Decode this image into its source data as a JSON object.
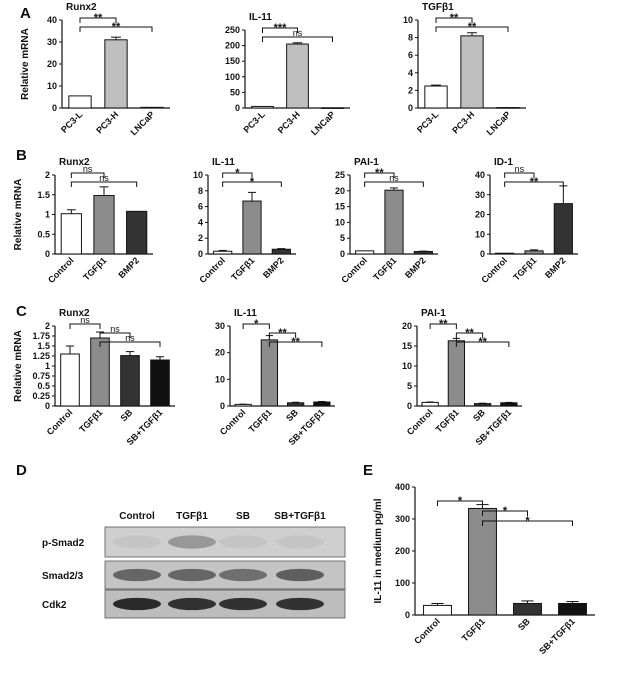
{
  "palette": {
    "white": "#ffffff",
    "lightgray": "#bfbfbf",
    "gray": "#8c8c8c",
    "dark": "#333333",
    "black": "#111111"
  },
  "chart_data": [
    {
      "id": "A1",
      "panel_letter": "A",
      "type": "bar",
      "title": "Runx2",
      "ylabel": "Relative mRNA",
      "ylim": [
        0,
        40
      ],
      "yticks": [
        0,
        10,
        20,
        30,
        40
      ],
      "categories": [
        "PC3-L",
        "PC3-H",
        "LNCaP"
      ],
      "values": [
        5.5,
        31,
        0.3
      ],
      "errors": [
        0,
        1.2,
        0
      ],
      "colors": [
        "white",
        "lightgray",
        "white"
      ],
      "sig": [
        {
          "from": 0,
          "to": 1,
          "label": "**"
        },
        {
          "from": 0,
          "to": 2,
          "label": "**"
        }
      ]
    },
    {
      "id": "A2",
      "type": "bar",
      "title": "IL-11",
      "ylim": [
        0,
        250
      ],
      "yticks": [
        0,
        50,
        100,
        150,
        200,
        250
      ],
      "categories": [
        "PC3-L",
        "PC3-H",
        "LNCaP"
      ],
      "values": [
        5,
        205,
        0.5
      ],
      "errors": [
        0,
        4,
        0
      ],
      "colors": [
        "white",
        "lightgray",
        "white"
      ],
      "sig": [
        {
          "from": 0,
          "to": 1,
          "label": "***"
        },
        {
          "from": 0,
          "to": 2,
          "label": "ns"
        }
      ]
    },
    {
      "id": "A3",
      "type": "bar",
      "title": "TGFβ1",
      "ylim": [
        0,
        10
      ],
      "yticks": [
        0,
        2,
        4,
        6,
        8,
        10
      ],
      "categories": [
        "PC3-L",
        "PC3-H",
        "LNCaP"
      ],
      "values": [
        2.5,
        8.2,
        0.05
      ],
      "errors": [
        0.1,
        0.35,
        0
      ],
      "colors": [
        "white",
        "lightgray",
        "white"
      ],
      "sig": [
        {
          "from": 0,
          "to": 1,
          "label": "**"
        },
        {
          "from": 0,
          "to": 2,
          "label": "**"
        }
      ]
    },
    {
      "id": "B1",
      "panel_letter": "B",
      "type": "bar",
      "title": "Runx2",
      "ylabel": "Relative mRNA",
      "ylim": [
        0,
        2.0
      ],
      "yticks": [
        0.0,
        0.5,
        1.0,
        1.5,
        2.0
      ],
      "categories": [
        "Control",
        "TGFβ1",
        "BMP2"
      ],
      "values": [
        1.02,
        1.48,
        1.08
      ],
      "errors": [
        0.1,
        0.22,
        0
      ],
      "colors": [
        "white",
        "gray",
        "dark"
      ],
      "sig": [
        {
          "from": 0,
          "to": 1,
          "label": "ns"
        },
        {
          "from": 0,
          "to": 2,
          "label": "ns"
        }
      ]
    },
    {
      "id": "B2",
      "type": "bar",
      "title": "IL-11",
      "ylim": [
        0,
        10
      ],
      "yticks": [
        0,
        2,
        4,
        6,
        8,
        10
      ],
      "categories": [
        "Control",
        "TGFβ1",
        "BMP2"
      ],
      "values": [
        0.35,
        6.7,
        0.6
      ],
      "errors": [
        0.1,
        1.1,
        0.08
      ],
      "colors": [
        "white",
        "gray",
        "dark"
      ],
      "sig": [
        {
          "from": 0,
          "to": 1,
          "label": "*"
        },
        {
          "from": 0,
          "to": 2,
          "label": "*"
        }
      ]
    },
    {
      "id": "B3",
      "type": "bar",
      "title": "PAI-1",
      "ylim": [
        0,
        25
      ],
      "yticks": [
        0,
        5,
        10,
        15,
        20,
        25
      ],
      "categories": [
        "Control",
        "TGFβ1",
        "BMP2"
      ],
      "values": [
        1,
        20.2,
        0.8
      ],
      "errors": [
        0,
        0.7,
        0.1
      ],
      "colors": [
        "white",
        "gray",
        "dark"
      ],
      "sig": [
        {
          "from": 0,
          "to": 1,
          "label": "**"
        },
        {
          "from": 0,
          "to": 2,
          "label": "ns"
        }
      ]
    },
    {
      "id": "B4",
      "type": "bar",
      "title": "ID-1",
      "ylim": [
        0,
        40
      ],
      "yticks": [
        0,
        10,
        20,
        30,
        40
      ],
      "categories": [
        "Control",
        "TGFβ1",
        "BMP2"
      ],
      "values": [
        0.4,
        1.6,
        25.5
      ],
      "errors": [
        0,
        0.5,
        9
      ],
      "colors": [
        "white",
        "gray",
        "dark"
      ],
      "sig": [
        {
          "from": 0,
          "to": 1,
          "label": "ns"
        },
        {
          "from": 0,
          "to": 2,
          "label": "**"
        }
      ]
    },
    {
      "id": "C1",
      "panel_letter": "C",
      "type": "bar",
      "title": "Runx2",
      "ylabel": "Relative mRNA",
      "ylim": [
        0,
        2.0
      ],
      "yticks": [
        0.0,
        0.25,
        0.5,
        0.75,
        1.0,
        1.25,
        1.5,
        1.75,
        2.0
      ],
      "categories": [
        "Control",
        "TGFβ1",
        "SB",
        "SB+TGFβ1"
      ],
      "values": [
        1.3,
        1.7,
        1.26,
        1.15
      ],
      "errors": [
        0.2,
        0.15,
        0.1,
        0.08
      ],
      "colors": [
        "white",
        "gray",
        "dark",
        "black"
      ],
      "sig": [
        {
          "from": 0,
          "to": 1,
          "label": "ns"
        },
        {
          "from": 1,
          "to": 2,
          "label": "ns"
        },
        {
          "from": 1,
          "to": 3,
          "label": "ns"
        }
      ]
    },
    {
      "id": "C2",
      "type": "bar",
      "title": "IL-11",
      "ylim": [
        0,
        30
      ],
      "yticks": [
        0,
        10,
        20,
        30
      ],
      "categories": [
        "Control",
        "TGFβ1",
        "SB",
        "SB+TGFβ1"
      ],
      "values": [
        0.6,
        24.8,
        1.2,
        1.5
      ],
      "errors": [
        0.1,
        1.6,
        0.2,
        0.2
      ],
      "colors": [
        "white",
        "gray",
        "dark",
        "black"
      ],
      "sig": [
        {
          "from": 0,
          "to": 1,
          "label": "*"
        },
        {
          "from": 1,
          "to": 2,
          "label": "**"
        },
        {
          "from": 1,
          "to": 3,
          "label": "**"
        }
      ]
    },
    {
      "id": "C3",
      "type": "bar",
      "title": "PAI-1",
      "ylim": [
        0,
        20
      ],
      "yticks": [
        0,
        5,
        10,
        15,
        20
      ],
      "categories": [
        "Control",
        "TGFβ1",
        "SB",
        "SB+TGFβ1"
      ],
      "values": [
        0.9,
        16.3,
        0.6,
        0.8
      ],
      "errors": [
        0.1,
        0.6,
        0.1,
        0.1
      ],
      "colors": [
        "white",
        "gray",
        "dark",
        "black"
      ],
      "sig": [
        {
          "from": 0,
          "to": 1,
          "label": "**"
        },
        {
          "from": 1,
          "to": 2,
          "label": "**"
        },
        {
          "from": 1,
          "to": 3,
          "label": "**"
        }
      ]
    },
    {
      "id": "E",
      "panel_letter": "E",
      "type": "bar",
      "title": "",
      "ylabel": "IL-11 in medium pg/ml",
      "ylim": [
        0,
        400
      ],
      "yticks": [
        0,
        100,
        200,
        300,
        400
      ],
      "categories": [
        "Control",
        "TGFβ1",
        "SB",
        "SB+TGFβ1"
      ],
      "values": [
        30,
        333,
        36,
        36
      ],
      "errors": [
        6,
        12,
        8,
        6
      ],
      "colors": [
        "white",
        "gray",
        "dark",
        "black"
      ],
      "sig": [
        {
          "from": 0,
          "to": 1,
          "label": "*"
        },
        {
          "from": 1,
          "to": 2,
          "label": "*"
        },
        {
          "from": 1,
          "to": 3,
          "label": "*"
        }
      ]
    }
  ],
  "blot": {
    "panel_letter": "D",
    "columns": [
      "Control",
      "TGFβ1",
      "SB",
      "SB+TGFβ1"
    ],
    "rows": [
      {
        "label": "p-Smad2",
        "intensity": [
          0.05,
          0.3,
          0.05,
          0.05
        ],
        "background": "#cfcfcf"
      },
      {
        "label": "Smad2/3",
        "intensity": [
          0.55,
          0.55,
          0.5,
          0.6
        ],
        "background": "#c4c4c4"
      },
      {
        "label": "Cdk2",
        "intensity": [
          0.9,
          0.85,
          0.85,
          0.85
        ],
        "background": "#bdbdbd"
      }
    ]
  }
}
